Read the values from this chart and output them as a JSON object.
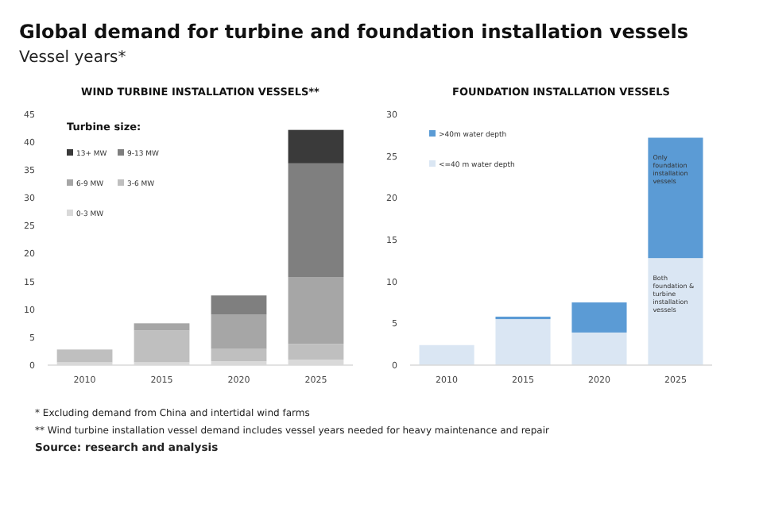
{
  "chart_data": [
    {
      "type": "other",
      "title": "Global demand for turbine and foundation installation vessels",
      "subtitle": "Vessel years*",
      "annotations": [
        "* Excluding demand from China and intertidal wind farms",
        "** Wind turbine installation vessel demand includes vessel years needed for heavy maintenance and repair",
        "Source: research and analysis"
      ]
    },
    {
      "type": "bar",
      "title": "WIND TURBINE INSTALLATION VESSELS**",
      "categories": [
        "2010",
        "2015",
        "2020",
        "2025"
      ],
      "stacked": true,
      "legend": "top left",
      "legend_title": "Turbine size:",
      "ylim": [
        0,
        45
      ],
      "yticks": [
        0,
        5,
        10,
        15,
        20,
        25,
        30,
        35,
        40,
        45
      ],
      "grid": false,
      "series": [
        {
          "name": "0-3 MW",
          "color": "#d9d9d9",
          "values": [
            0.5,
            0.5,
            0.7,
            1.0
          ]
        },
        {
          "name": "3-6 MW",
          "color": "#bfbfbf",
          "values": [
            2.3,
            5.7,
            2.2,
            2.8
          ]
        },
        {
          "name": "6-9 MW",
          "color": "#a6a6a6",
          "values": [
            0,
            1.3,
            6.2,
            12
          ]
        },
        {
          "name": "9-13 MW",
          "color": "#7f7f7f",
          "values": [
            0,
            0,
            3.4,
            20.4
          ]
        },
        {
          "name": "13+ MW",
          "color": "#3a3a3a",
          "values": [
            0,
            0,
            0,
            6
          ]
        }
      ]
    },
    {
      "type": "bar",
      "title": "FOUNDATION INSTALLATION VESSELS",
      "categories": [
        "2010",
        "2015",
        "2020",
        "2025"
      ],
      "stacked": true,
      "legend": "top left",
      "ylim": [
        0,
        30
      ],
      "yticks": [
        0,
        5,
        10,
        15,
        20,
        25,
        30
      ],
      "grid": false,
      "series": [
        {
          "name": "<=40 m water depth",
          "color": "#dae6f3",
          "values": [
            2.4,
            5.5,
            3.9,
            12.8
          ]
        },
        {
          "name": ">40m water depth",
          "color": "#5b9bd5",
          "values": [
            0,
            0.3,
            3.6,
            14.4
          ]
        }
      ],
      "annotations": [
        "Both foundation & turbine installation vessels",
        "Only foundation installation vessels"
      ]
    }
  ]
}
